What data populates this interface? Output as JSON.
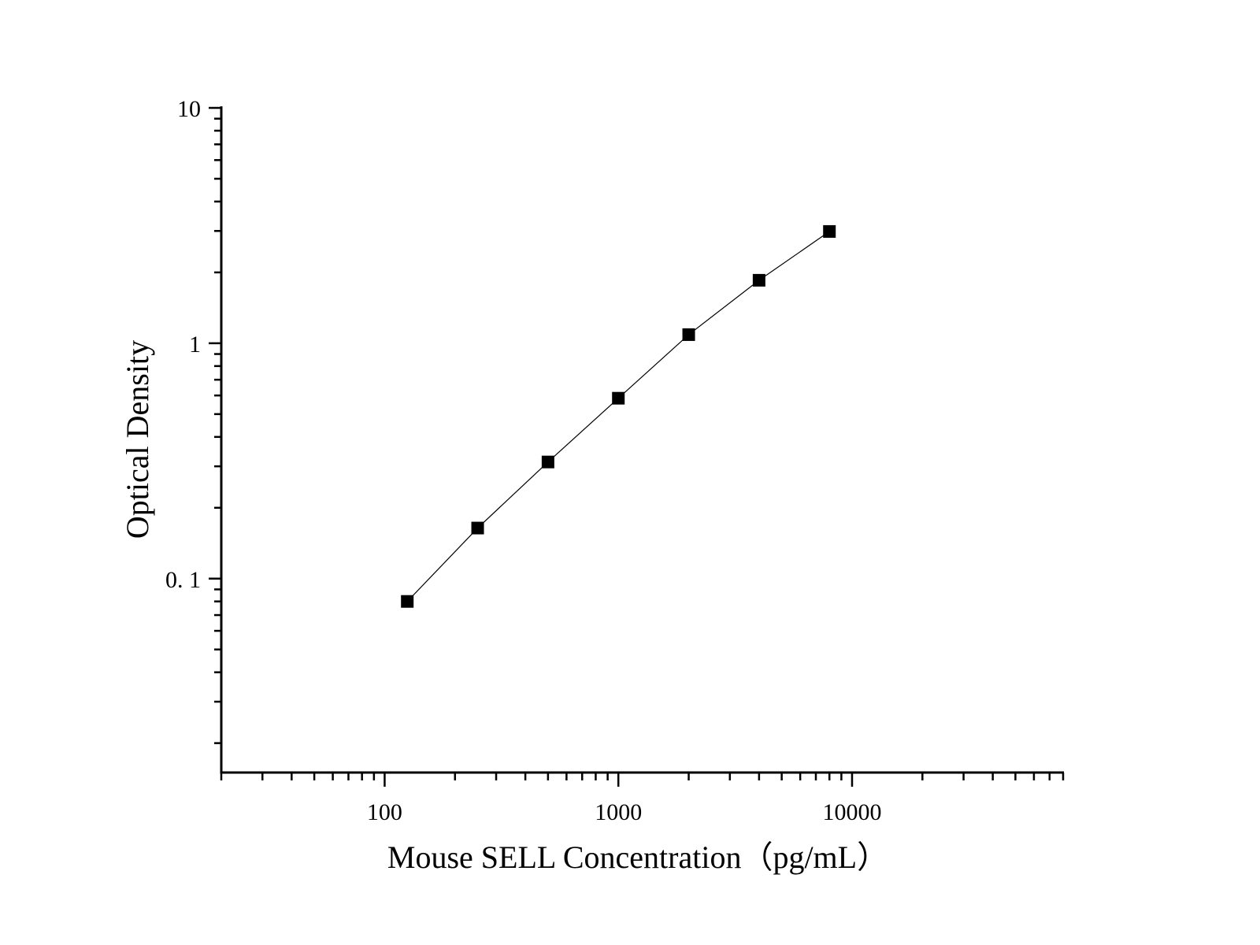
{
  "chart_data": {
    "type": "line",
    "title": "",
    "xlabel": "Mouse SELL Concentration（pg/mL）",
    "ylabel": "Optical Density",
    "xscale": "log",
    "yscale": "log",
    "xlim": [
      20,
      80000
    ],
    "ylim": [
      0.015,
      10
    ],
    "x_ticks": [
      100,
      1000,
      10000
    ],
    "x_tick_labels": [
      "100",
      "1000",
      "10000"
    ],
    "y_ticks": [
      0.1,
      1,
      10
    ],
    "y_tick_labels": [
      "0. 1",
      "1",
      "10"
    ],
    "grid": false,
    "marker": "square",
    "color": "#000000",
    "series": [
      {
        "x": [
          125,
          250,
          500,
          1000,
          2000,
          4000,
          8000
        ],
        "y": [
          0.08,
          0.164,
          0.313,
          0.584,
          1.088,
          1.852,
          2.985
        ]
      }
    ]
  }
}
